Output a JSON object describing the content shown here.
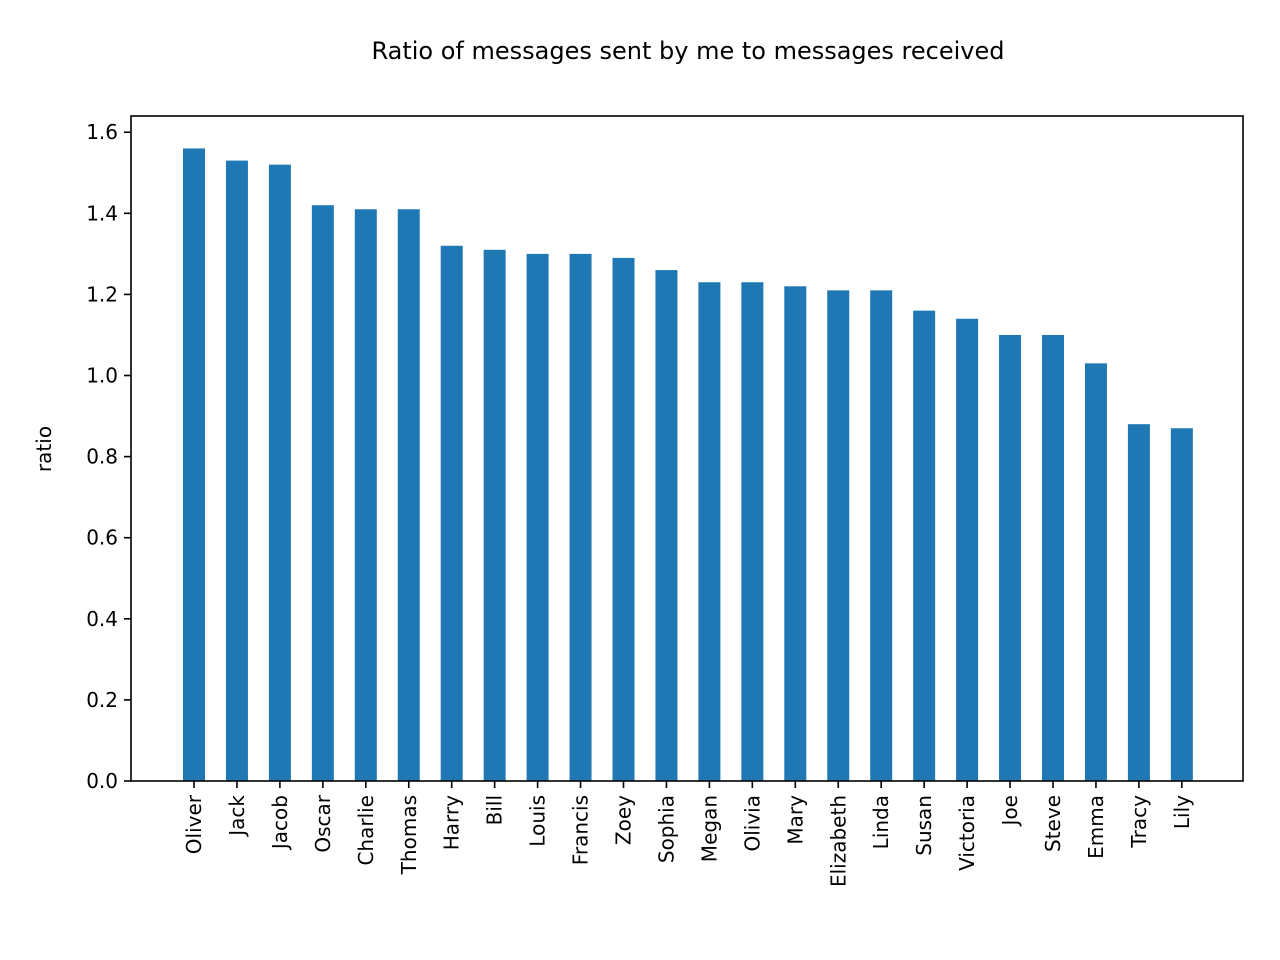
{
  "chart_data": {
    "type": "bar",
    "title": "Ratio of messages sent by me to messages received",
    "xlabel": "",
    "ylabel": "ratio",
    "ylim": [
      0,
      1.64
    ],
    "yticks": [
      "0.0",
      "0.2",
      "0.4",
      "0.6",
      "0.8",
      "1.0",
      "1.2",
      "1.4",
      "1.6"
    ],
    "grid": false,
    "bar_color": "#1f77b4",
    "categories": [
      "Oliver",
      "Jack",
      "Jacob",
      "Oscar",
      "Charlie",
      "Thomas",
      "Harry",
      "Bill",
      "Louis",
      "Francis",
      "Zoey",
      "Sophia",
      "Megan",
      "Olivia",
      "Mary",
      "Elizabeth",
      "Linda",
      "Susan",
      "Victoria",
      "Joe",
      "Steve",
      "Emma",
      "Tracy",
      "Lily"
    ],
    "values": [
      1.56,
      1.53,
      1.52,
      1.42,
      1.41,
      1.41,
      1.32,
      1.31,
      1.3,
      1.3,
      1.29,
      1.26,
      1.23,
      1.23,
      1.22,
      1.21,
      1.21,
      1.16,
      1.14,
      1.1,
      1.1,
      1.03,
      0.88,
      0.87
    ]
  }
}
